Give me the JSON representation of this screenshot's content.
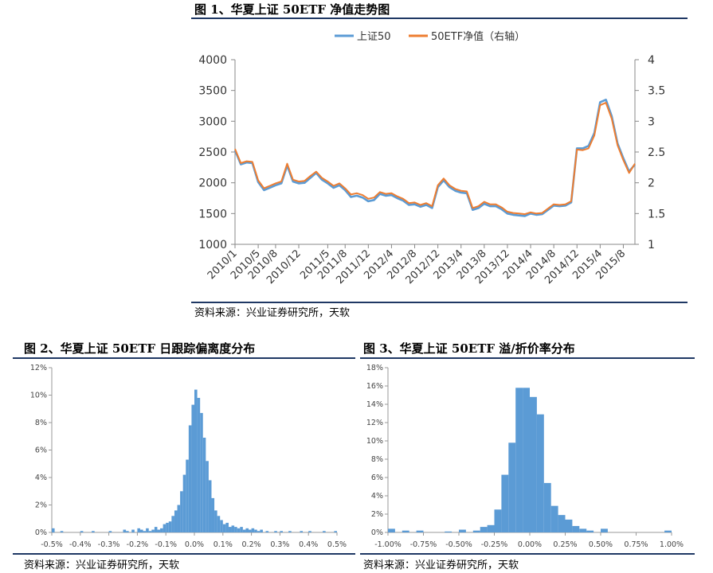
{
  "figures": {
    "fig1_title": "图 1、华夏上证 50ETF 净值走势图",
    "fig2_title": "图 2、华夏上证 50ETF 日跟踪偏离度分布",
    "fig3_title": "图 3、华夏上证 50ETF 溢/折价率分布",
    "source1": "资料来源：兴业证券研究所，天软",
    "source2": "资料来源：兴业证券研究所，天软",
    "source3": "资料来源：兴业证券研究所，天软"
  },
  "colors": {
    "sse50": "#5b9bd5",
    "etf": "#ed7d31",
    "bar": "#5b9bd5",
    "rule": "#1f3864"
  },
  "chart_data": [
    {
      "type": "line",
      "title": "",
      "x_ticks": [
        "2010/1",
        "2010/5",
        "2010/8",
        "2010/12",
        "2011/5",
        "2011/8",
        "2011/12",
        "2012/4",
        "2012/8",
        "2012/12",
        "2013/4",
        "2013/8",
        "2013/12",
        "2014/4",
        "2014/8",
        "2014/12",
        "2015/4",
        "2015/8"
      ],
      "y_ticks": [
        "1000",
        "1500",
        "2000",
        "2500",
        "3000",
        "3500",
        "4000"
      ],
      "y2_ticks": [
        "1",
        "1.5",
        "2",
        "2.5",
        "3",
        "3.5",
        "4"
      ],
      "ylim": [
        1000,
        4000
      ],
      "y2lim": [
        1,
        4
      ],
      "legend_position": "top",
      "series": [
        {
          "name": "上证50",
          "axis": "left",
          "x": [
            "2010/1",
            "2010/2",
            "2010/3",
            "2010/4",
            "2010/5",
            "2010/6",
            "2010/7",
            "2010/8",
            "2010/9",
            "2010/10",
            "2010/11",
            "2010/12",
            "2011/1",
            "2011/2",
            "2011/3",
            "2011/4",
            "2011/5",
            "2011/6",
            "2011/7",
            "2011/8",
            "2011/9",
            "2011/10",
            "2011/11",
            "2011/12",
            "2012/1",
            "2012/2",
            "2012/3",
            "2012/4",
            "2012/5",
            "2012/6",
            "2012/7",
            "2012/8",
            "2012/9",
            "2012/10",
            "2012/11",
            "2012/12",
            "2013/1",
            "2013/2",
            "2013/3",
            "2013/4",
            "2013/5",
            "2013/6",
            "2013/7",
            "2013/8",
            "2013/9",
            "2013/10",
            "2013/11",
            "2013/12",
            "2014/1",
            "2014/2",
            "2014/3",
            "2014/4",
            "2014/5",
            "2014/6",
            "2014/7",
            "2014/8",
            "2014/9",
            "2014/10",
            "2014/11",
            "2014/12",
            "2015/1",
            "2015/2",
            "2015/3",
            "2015/4",
            "2015/5",
            "2015/6",
            "2015/7",
            "2015/8",
            "2015/9",
            "2015/10"
          ],
          "values": [
            2530,
            2300,
            2330,
            2320,
            2010,
            1880,
            1920,
            1960,
            1990,
            2280,
            2020,
            1990,
            2000,
            2080,
            2160,
            2050,
            1990,
            1920,
            1960,
            1880,
            1770,
            1790,
            1760,
            1700,
            1720,
            1820,
            1790,
            1800,
            1750,
            1710,
            1640,
            1650,
            1610,
            1640,
            1590,
            1930,
            2040,
            1930,
            1870,
            1840,
            1830,
            1560,
            1590,
            1660,
            1620,
            1620,
            1570,
            1500,
            1480,
            1470,
            1460,
            1500,
            1480,
            1490,
            1560,
            1630,
            1620,
            1630,
            1680,
            2560,
            2560,
            2600,
            2810,
            3310,
            3350,
            3080,
            2640,
            2400,
            2180,
            2300
          ]
        },
        {
          "name": "50ETF净值（右轴）",
          "axis": "right",
          "x": [
            "2010/1",
            "2010/2",
            "2010/3",
            "2010/4",
            "2010/5",
            "2010/6",
            "2010/7",
            "2010/8",
            "2010/9",
            "2010/10",
            "2010/11",
            "2010/12",
            "2011/1",
            "2011/2",
            "2011/3",
            "2011/4",
            "2011/5",
            "2011/6",
            "2011/7",
            "2011/8",
            "2011/9",
            "2011/10",
            "2011/11",
            "2011/12",
            "2012/1",
            "2012/2",
            "2012/3",
            "2012/4",
            "2012/5",
            "2012/6",
            "2012/7",
            "2012/8",
            "2012/9",
            "2012/10",
            "2012/11",
            "2012/12",
            "2013/1",
            "2013/2",
            "2013/3",
            "2013/4",
            "2013/5",
            "2013/6",
            "2013/7",
            "2013/8",
            "2013/9",
            "2013/10",
            "2013/11",
            "2013/12",
            "2014/1",
            "2014/2",
            "2014/3",
            "2014/4",
            "2014/5",
            "2014/6",
            "2014/7",
            "2014/8",
            "2014/9",
            "2014/10",
            "2014/11",
            "2014/12",
            "2015/1",
            "2015/2",
            "2015/3",
            "2015/4",
            "2015/5",
            "2015/6",
            "2015/7",
            "2015/8",
            "2015/9",
            "2015/10"
          ],
          "values": [
            2.55,
            2.32,
            2.35,
            2.34,
            2.04,
            1.91,
            1.95,
            1.99,
            2.02,
            2.31,
            2.05,
            2.02,
            2.03,
            2.11,
            2.18,
            2.08,
            2.02,
            1.95,
            1.99,
            1.91,
            1.81,
            1.83,
            1.8,
            1.74,
            1.76,
            1.85,
            1.82,
            1.83,
            1.78,
            1.74,
            1.67,
            1.68,
            1.64,
            1.67,
            1.62,
            1.96,
            2.07,
            1.96,
            1.9,
            1.87,
            1.86,
            1.59,
            1.62,
            1.69,
            1.65,
            1.65,
            1.6,
            1.53,
            1.51,
            1.5,
            1.49,
            1.52,
            1.5,
            1.51,
            1.58,
            1.65,
            1.64,
            1.65,
            1.7,
            2.54,
            2.53,
            2.56,
            2.77,
            3.26,
            3.3,
            3.04,
            2.61,
            2.37,
            2.16,
            2.31
          ]
        }
      ]
    },
    {
      "type": "bar",
      "title": "",
      "x_ticks": [
        "-0.5%",
        "-0.4%",
        "-0.3%",
        "-0.2%",
        "-0.1%",
        "0.0%",
        "0.1%",
        "0.2%",
        "0.3%",
        "0.4%",
        "0.5%"
      ],
      "y_ticks": [
        "0%",
        "2%",
        "4%",
        "6%",
        "8%",
        "10%",
        "12%"
      ],
      "xlim": [
        -0.5,
        0.5
      ],
      "ylim": [
        0,
        12
      ],
      "bin_width": 0.01,
      "bin_start": [
        -0.5,
        -0.47,
        -0.4,
        -0.36,
        -0.3,
        -0.25,
        -0.24,
        -0.22,
        -0.2,
        -0.19,
        -0.18,
        -0.17,
        -0.16,
        -0.15,
        -0.14,
        -0.13,
        -0.12,
        -0.11,
        -0.1,
        -0.09,
        -0.08,
        -0.07,
        -0.06,
        -0.05,
        -0.04,
        -0.03,
        -0.02,
        -0.01,
        0.0,
        0.01,
        0.02,
        0.03,
        0.04,
        0.05,
        0.06,
        0.07,
        0.08,
        0.09,
        0.1,
        0.11,
        0.12,
        0.13,
        0.14,
        0.15,
        0.16,
        0.17,
        0.18,
        0.19,
        0.2,
        0.21,
        0.22,
        0.23,
        0.25,
        0.28,
        0.3,
        0.33,
        0.37,
        0.4,
        0.45,
        0.49
      ],
      "values": [
        0.3,
        0.1,
        0.1,
        0.1,
        0.1,
        0.2,
        0.1,
        0.2,
        0.3,
        0.2,
        0.1,
        0.3,
        0.1,
        0.2,
        0.4,
        0.2,
        0.3,
        0.6,
        0.7,
        0.8,
        1.2,
        1.6,
        2.0,
        3.0,
        4.2,
        5.3,
        7.8,
        9.3,
        10.4,
        9.8,
        8.7,
        6.9,
        5.2,
        3.8,
        2.5,
        1.6,
        1.2,
        0.9,
        0.6,
        0.7,
        0.4,
        0.5,
        0.4,
        0.3,
        0.4,
        0.2,
        0.3,
        0.2,
        0.3,
        0.2,
        0.1,
        0.2,
        0.1,
        0.1,
        0.1,
        0.1,
        0.1,
        0.1,
        0.1,
        0.1
      ]
    },
    {
      "type": "bar",
      "title": "",
      "x_ticks": [
        "-1.00%",
        "-0.75%",
        "-0.50%",
        "-0.25%",
        "0.00%",
        "0.25%",
        "0.50%",
        "0.75%",
        "1.00%"
      ],
      "y_ticks": [
        "0%",
        "2%",
        "4%",
        "6%",
        "8%",
        "10%",
        "12%",
        "14%",
        "16%",
        "18%"
      ],
      "xlim": [
        -1.0,
        1.0
      ],
      "ylim": [
        0,
        18
      ],
      "bin_width": 0.05,
      "bin_start": [
        -1.0,
        -0.9,
        -0.8,
        -0.6,
        -0.5,
        -0.4,
        -0.35,
        -0.3,
        -0.25,
        -0.2,
        -0.15,
        -0.1,
        -0.05,
        0.0,
        0.05,
        0.1,
        0.15,
        0.2,
        0.25,
        0.3,
        0.35,
        0.4,
        0.5,
        0.95
      ],
      "values": [
        0.4,
        0.2,
        0.2,
        0.1,
        0.3,
        0.2,
        0.6,
        0.8,
        2.5,
        6.3,
        9.8,
        15.8,
        15.8,
        14.8,
        12.9,
        5.4,
        2.9,
        1.9,
        1.4,
        0.7,
        0.4,
        0.2,
        0.4,
        0.2
      ]
    }
  ]
}
